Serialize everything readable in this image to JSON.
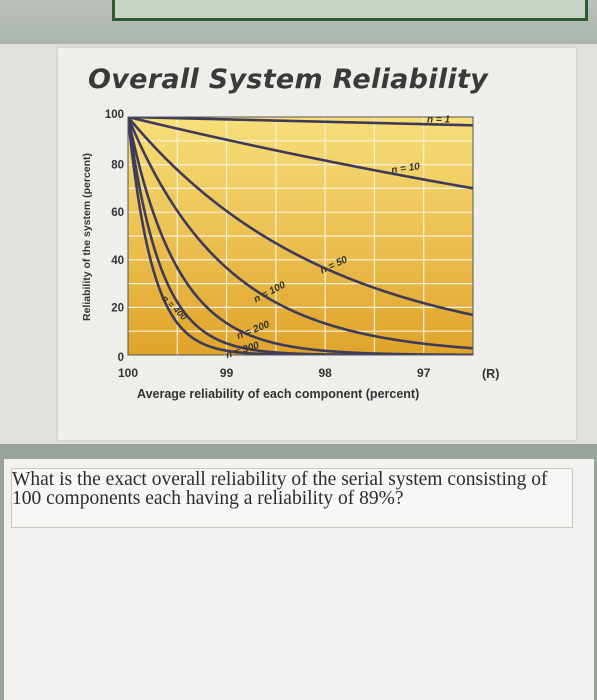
{
  "page": {
    "question": "What is the exact overall reliability of the serial system consisting of 100 components each having a reliability of 89%?"
  },
  "chart_data": {
    "type": "line",
    "title": "Overall System Reliability",
    "xlabel": "Average reliability of each component (percent)",
    "ylabel": "Reliability of the system (percent)",
    "x_unit_label": "(R)",
    "xlim": [
      100,
      96.5
    ],
    "ylim": [
      0,
      100
    ],
    "x_ticks": [
      "100",
      "99",
      "98",
      "97"
    ],
    "y_ticks": [
      "100",
      "80",
      "60",
      "40",
      "20",
      "0"
    ],
    "grid": true,
    "legend": "none",
    "series": [
      {
        "name": "n = 1",
        "n": 1,
        "x": [
          100,
          96.5
        ],
        "y": [
          100,
          96.5
        ]
      },
      {
        "name": "n = 10",
        "n": 10,
        "x": [
          100,
          99,
          98,
          97,
          96.5
        ],
        "y": [
          100,
          90.4,
          81.7,
          73.7,
          70.0
        ]
      },
      {
        "name": "n = 50",
        "n": 50,
        "x": [
          100,
          99,
          98,
          97,
          96.5
        ],
        "y": [
          100,
          60.5,
          36.4,
          21.8,
          16.8
        ]
      },
      {
        "name": "n = 100",
        "n": 100,
        "x": [
          100,
          99,
          98,
          97,
          96.5
        ],
        "y": [
          100,
          36.6,
          13.3,
          4.8,
          2.8
        ]
      },
      {
        "name": "n = 200",
        "n": 200,
        "x": [
          100,
          99,
          98,
          97,
          96.5
        ],
        "y": [
          100,
          13.4,
          1.8,
          0.2,
          0.1
        ]
      },
      {
        "name": "n = 300",
        "n": 300,
        "x": [
          100,
          99,
          98,
          97,
          96.5
        ],
        "y": [
          100,
          4.9,
          0.2,
          0.0,
          0.0
        ]
      },
      {
        "name": "n = 400",
        "n": 400,
        "x": [
          100,
          99,
          98,
          97,
          96.5
        ],
        "y": [
          100,
          1.8,
          0.0,
          0.0,
          0.0
        ]
      }
    ],
    "curve_labels": [
      "n = 1",
      "n = 10",
      "n = 50",
      "n = 100",
      "n = 200",
      "n = 300",
      "n = 400"
    ],
    "colors": {
      "plot_bg_light": "#f7df7a",
      "plot_bg_dark": "#e0a32a",
      "grid": "#f4efd9",
      "curve": "#3e3b5a"
    }
  }
}
